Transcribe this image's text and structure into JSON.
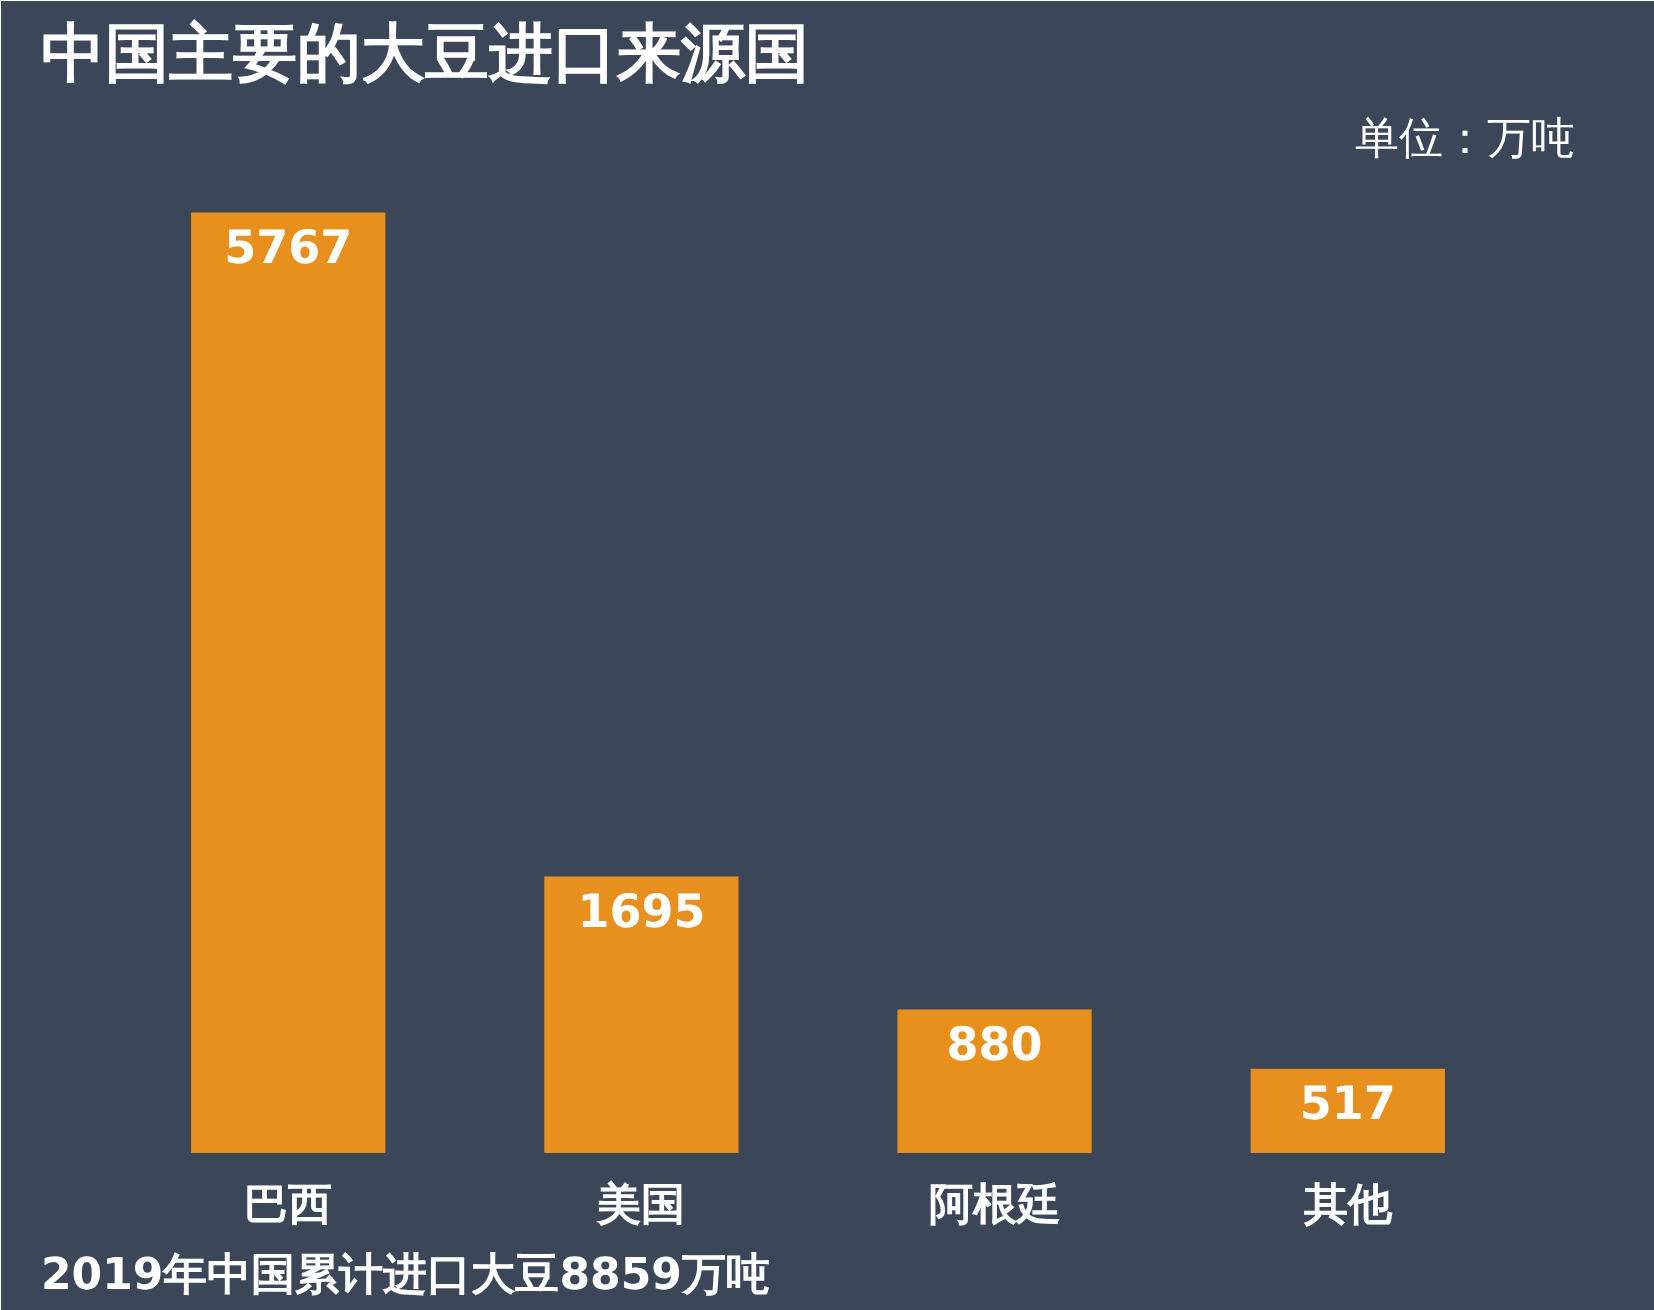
{
  "chart_data": {
    "type": "bar",
    "title": "中国主要的大豆进口来源国",
    "categories": [
      "巴西",
      "美国",
      "阿根廷",
      "其他"
    ],
    "values": [
      5767,
      1695,
      880,
      517
    ],
    "color": "#e8901e",
    "data_labels": true,
    "annotations": [
      "单位：万吨",
      "2019年中国累计进口大豆8859万吨"
    ]
  }
}
